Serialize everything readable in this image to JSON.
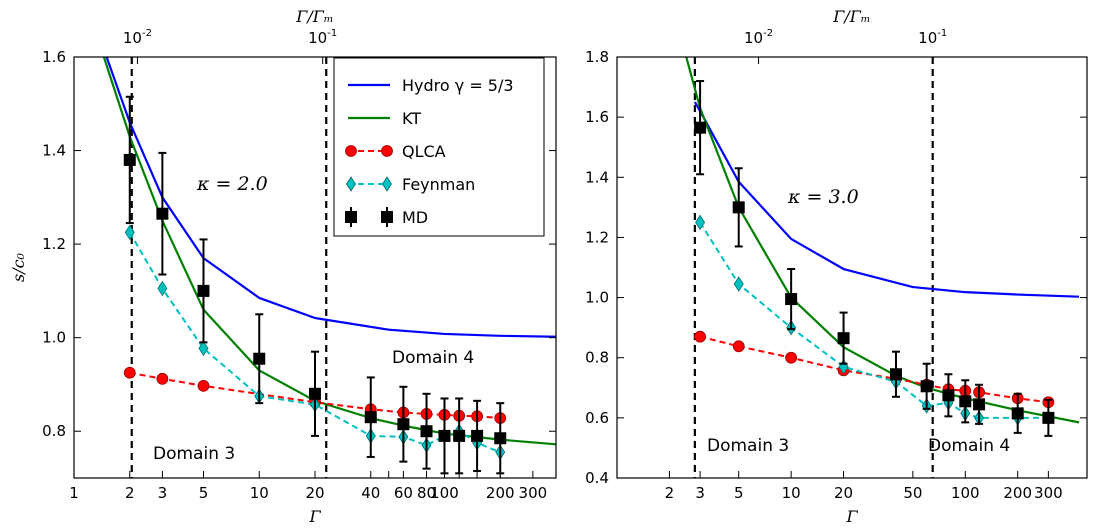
{
  "chart_data": [
    {
      "type": "line",
      "x_scale": "log",
      "xlim": [
        1,
        400
      ],
      "ylim": [
        0.7,
        1.6
      ],
      "xlabel": "Γ",
      "ylabel": "s/c₀",
      "top_xlabel": "Γ/Γₘ",
      "x_ticks": [
        1,
        2,
        3,
        5,
        10,
        20,
        50,
        100,
        200
      ],
      "x_tick_labels": [
        "1",
        "2",
        "3",
        "5",
        "10",
        "20",
        "",
        "",
        ""
      ],
      "x_ticks_extra": [
        40,
        60,
        80,
        100,
        120,
        150,
        200,
        300
      ],
      "x_tick_labels_extra": [
        "40",
        "60",
        "80",
        "100",
        "",
        "",
        "200",
        "300"
      ],
      "y_ticks": [
        0.8,
        1.0,
        1.2,
        1.4,
        1.6
      ],
      "y_tick_labels": [
        "0.8",
        "1.0",
        "1.2",
        "1.4",
        "1.6"
      ],
      "top_ticks": [
        2.2,
        22
      ],
      "top_tick_labels": [
        "10-2",
        "10-1"
      ],
      "vlines": [
        2.05,
        23
      ],
      "annotations": {
        "kappa": "κ = 2.0",
        "domain3": "Domain 3",
        "domain4": "Domain 4"
      },
      "legend_position": "upper-right",
      "series": [
        {
          "name": "Hydro γ = 5/3",
          "kind": "line",
          "color": "#0000ff",
          "x": [
            1.5,
            2,
            3,
            5,
            10,
            20,
            50,
            100,
            200,
            400
          ],
          "y": [
            1.6,
            1.46,
            1.3,
            1.17,
            1.085,
            1.042,
            1.017,
            1.008,
            1.004,
            1.002
          ]
        },
        {
          "name": "KT",
          "kind": "line",
          "color": "#008000",
          "x": [
            1.45,
            2,
            3,
            5,
            10,
            20,
            40,
            60,
            100,
            200,
            400
          ],
          "y": [
            1.6,
            1.43,
            1.25,
            1.06,
            0.93,
            0.865,
            0.828,
            0.812,
            0.795,
            0.782,
            0.772
          ]
        },
        {
          "name": "QLCA",
          "kind": "dashed-markers",
          "color": "#ff0000",
          "marker": "circle",
          "x": [
            2,
            3,
            5,
            20,
            40,
            60,
            80,
            100,
            120,
            150,
            200
          ],
          "y": [
            0.925,
            0.912,
            0.897,
            0.862,
            0.847,
            0.84,
            0.837,
            0.835,
            0.833,
            0.832,
            0.828
          ]
        },
        {
          "name": "Feynman",
          "kind": "dashed-markers",
          "color": "#00c0c0",
          "marker": "diamond",
          "x": [
            2,
            3,
            5,
            10,
            20,
            40,
            60,
            80,
            100,
            120,
            150,
            200
          ],
          "y": [
            1.225,
            1.105,
            0.977,
            0.875,
            0.857,
            0.79,
            0.788,
            0.77,
            0.79,
            0.8,
            0.775,
            0.755
          ]
        },
        {
          "name": "MD",
          "kind": "errorbar",
          "color": "#000000",
          "marker": "square",
          "x": [
            2,
            3,
            5,
            10,
            20,
            40,
            60,
            80,
            100,
            120,
            150,
            200
          ],
          "y": [
            1.38,
            1.265,
            1.1,
            0.955,
            0.88,
            0.83,
            0.815,
            0.8,
            0.79,
            0.79,
            0.79,
            0.785
          ],
          "err": [
            0.135,
            0.13,
            0.11,
            0.095,
            0.09,
            0.085,
            0.08,
            0.08,
            0.08,
            0.08,
            0.075,
            0.075
          ]
        }
      ]
    },
    {
      "type": "line",
      "x_scale": "log",
      "xlim": [
        1,
        500
      ],
      "ylim": [
        0.4,
        1.8
      ],
      "xlabel": "Γ",
      "ylabel": "",
      "top_xlabel": "Γ/Γₘ",
      "x_ticks": [
        2,
        3,
        5,
        10,
        20,
        50,
        100,
        200,
        300
      ],
      "x_tick_labels": [
        "2",
        "3",
        "5",
        "10",
        "20",
        "50",
        "100",
        "200",
        "300"
      ],
      "y_ticks": [
        0.4,
        0.6,
        0.8,
        1.0,
        1.2,
        1.4,
        1.6,
        1.8
      ],
      "y_tick_labels": [
        "0.4",
        "0.6",
        "0.8",
        "1.0",
        "1.2",
        "1.4",
        "1.6",
        "1.8"
      ],
      "top_ticks": [
        6.5,
        65
      ],
      "top_tick_labels": [
        "10-2",
        "10-1"
      ],
      "vlines": [
        2.8,
        65
      ],
      "annotations": {
        "kappa": "κ = 3.0",
        "domain3": "Domain 3",
        "domain4": "Domain 4"
      },
      "series": [
        {
          "name": "Hydro γ = 5/3",
          "kind": "line",
          "color": "#0000ff",
          "x": [
            2.8,
            3,
            5,
            10,
            20,
            50,
            100,
            200,
            450
          ],
          "y": [
            1.65,
            1.62,
            1.385,
            1.195,
            1.095,
            1.035,
            1.018,
            1.01,
            1.003
          ]
        },
        {
          "name": "KT",
          "kind": "line",
          "color": "#008000",
          "x": [
            2.5,
            3,
            5,
            10,
            20,
            40,
            60,
            100,
            200,
            450
          ],
          "y": [
            1.8,
            1.63,
            1.3,
            1.0,
            0.835,
            0.74,
            0.7,
            0.665,
            0.625,
            0.585
          ]
        },
        {
          "name": "QLCA",
          "kind": "dashed-markers",
          "color": "#ff0000",
          "marker": "circle",
          "x": [
            3,
            5,
            10,
            20,
            40,
            60,
            80,
            100,
            120,
            200,
            300
          ],
          "y": [
            0.87,
            0.838,
            0.8,
            0.758,
            0.73,
            0.71,
            0.695,
            0.69,
            0.685,
            0.665,
            0.652
          ]
        },
        {
          "name": "Feynman",
          "kind": "dashed-markers",
          "color": "#00c0c0",
          "marker": "diamond",
          "x": [
            3,
            5,
            10,
            20,
            40,
            60,
            80,
            100,
            120,
            200,
            300
          ],
          "y": [
            1.25,
            1.045,
            0.9,
            0.77,
            0.72,
            0.64,
            0.65,
            0.615,
            0.6,
            0.6,
            0.6
          ]
        },
        {
          "name": "MD",
          "kind": "errorbar",
          "color": "#000000",
          "marker": "square",
          "x": [
            3,
            5,
            10,
            20,
            40,
            60,
            80,
            100,
            120,
            200,
            300
          ],
          "y": [
            1.565,
            1.3,
            0.995,
            0.865,
            0.745,
            0.705,
            0.675,
            0.655,
            0.645,
            0.615,
            0.6
          ],
          "err": [
            0.155,
            0.13,
            0.1,
            0.085,
            0.075,
            0.075,
            0.07,
            0.07,
            0.065,
            0.065,
            0.06
          ]
        }
      ]
    }
  ]
}
